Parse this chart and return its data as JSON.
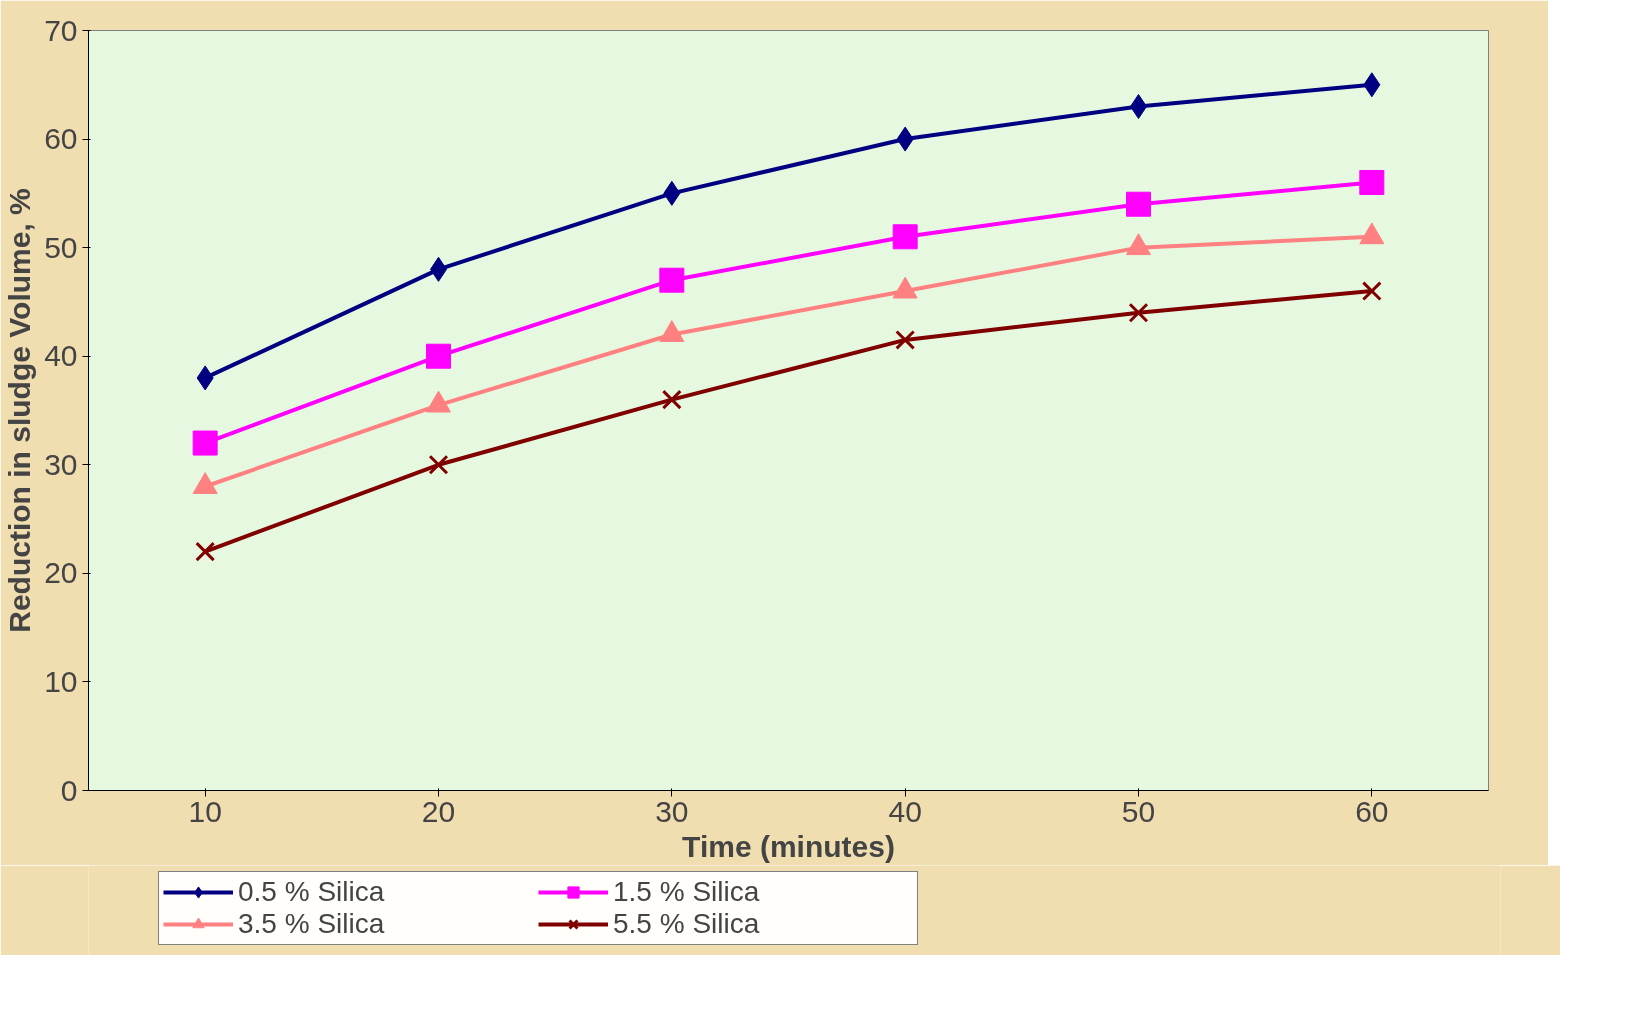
{
  "chart_data": {
    "type": "line",
    "xlabel": "Time (minutes)",
    "ylabel": "Reduction in sludge Volume, %",
    "categories": [
      "10",
      "20",
      "30",
      "40",
      "50",
      "60"
    ],
    "series": [
      {
        "name": "0.5 % Silica",
        "color": "#000080",
        "marker": "diamond",
        "values": [
          38,
          48,
          55,
          60,
          63,
          65
        ]
      },
      {
        "name": "1.5 % Silica",
        "color": "#ff00ff",
        "marker": "square",
        "values": [
          32,
          40,
          47,
          51,
          54,
          56
        ]
      },
      {
        "name": "3.5 % Silica",
        "color": "#ff8080",
        "marker": "triangle",
        "values": [
          28,
          35.5,
          42,
          46,
          50,
          51
        ]
      },
      {
        "name": "5.5 % Silica",
        "color": "#800000",
        "marker": "cross",
        "values": [
          22,
          30,
          36,
          41.5,
          44,
          46
        ]
      }
    ],
    "ylim": [
      0,
      70
    ],
    "yticks": [
      0,
      10,
      20,
      30,
      40,
      50,
      60,
      70
    ],
    "grid": false,
    "legend": "bottom left",
    "line_style": "solid"
  }
}
